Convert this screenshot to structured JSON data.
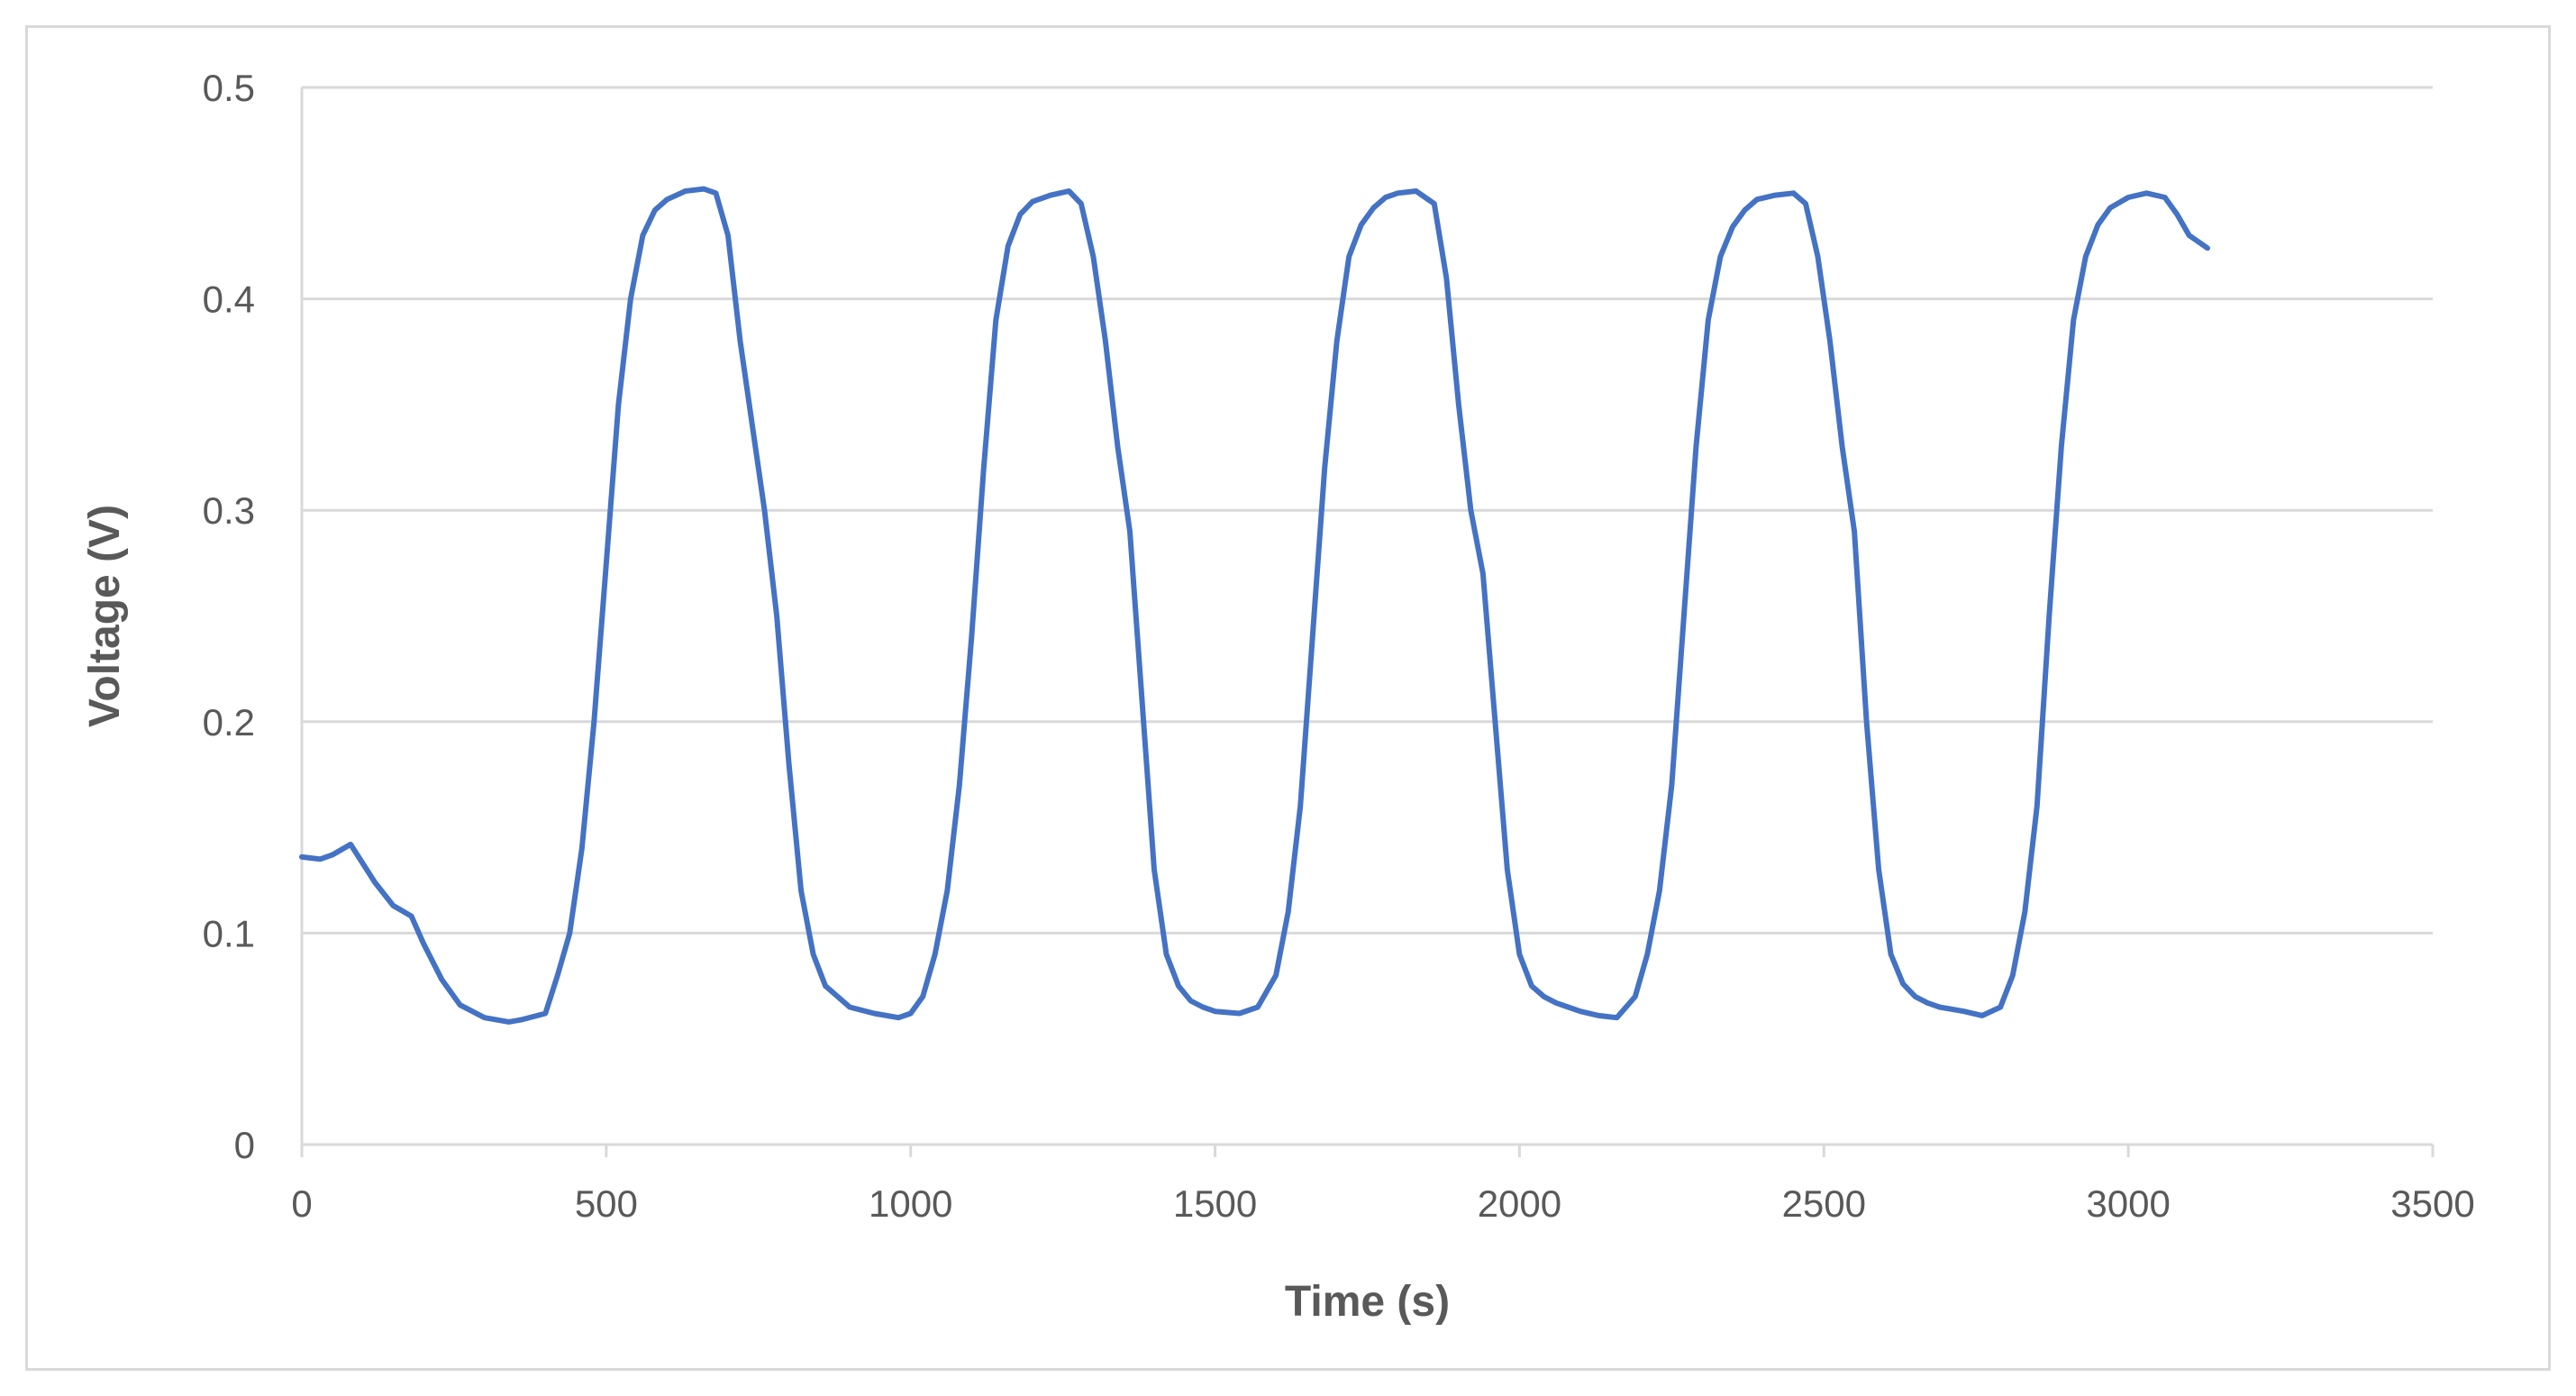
{
  "chart_data": {
    "type": "line",
    "title": "",
    "xlabel": "Time (s)",
    "ylabel": "Voltage (V)",
    "xlim": [
      0,
      3500
    ],
    "ylim": [
      0,
      0.5
    ],
    "x_ticks": [
      "0",
      "500",
      "1000",
      "1500",
      "2000",
      "2500",
      "3000",
      "3500"
    ],
    "y_ticks": [
      "0",
      "0.1",
      "0.2",
      "0.3",
      "0.4",
      "0.5"
    ],
    "grid": "horizontal",
    "legend": "none",
    "series_color": "#4472c4",
    "gridline_color": "#d9d9d9",
    "series": [
      {
        "x": [
          0,
          30,
          50,
          80,
          100,
          120,
          150,
          180,
          200,
          230,
          260,
          300,
          340,
          360,
          400,
          420,
          440,
          460,
          480,
          500,
          520,
          540,
          560,
          580,
          600,
          630,
          660,
          680,
          700,
          720,
          740,
          760,
          780,
          800,
          820,
          840,
          860,
          880,
          900,
          940,
          980,
          1000,
          1020,
          1040,
          1060,
          1080,
          1100,
          1120,
          1140,
          1160,
          1180,
          1200,
          1230,
          1260,
          1280,
          1300,
          1320,
          1340,
          1360,
          1380,
          1400,
          1420,
          1440,
          1460,
          1480,
          1500,
          1540,
          1570,
          1600,
          1620,
          1640,
          1660,
          1680,
          1700,
          1720,
          1740,
          1760,
          1780,
          1800,
          1830,
          1860,
          1880,
          1900,
          1920,
          1940,
          1960,
          1980,
          2000,
          2020,
          2040,
          2060,
          2080,
          2100,
          2130,
          2160,
          2190,
          2210,
          2230,
          2250,
          2270,
          2290,
          2310,
          2330,
          2350,
          2370,
          2390,
          2420,
          2450,
          2470,
          2490,
          2510,
          2530,
          2550,
          2570,
          2590,
          2610,
          2630,
          2650,
          2670,
          2690,
          2730,
          2760,
          2790,
          2810,
          2830,
          2850,
          2870,
          2890,
          2910,
          2930,
          2950,
          2970,
          3000,
          3030,
          3060,
          3080,
          3100,
          3130
        ],
        "y": [
          0.136,
          0.135,
          0.137,
          0.142,
          0.133,
          0.124,
          0.113,
          0.108,
          0.095,
          0.078,
          0.066,
          0.06,
          0.058,
          0.059,
          0.062,
          0.08,
          0.1,
          0.14,
          0.2,
          0.275,
          0.35,
          0.4,
          0.43,
          0.442,
          0.447,
          0.451,
          0.452,
          0.45,
          0.43,
          0.38,
          0.34,
          0.3,
          0.25,
          0.18,
          0.12,
          0.09,
          0.075,
          0.07,
          0.065,
          0.062,
          0.06,
          0.062,
          0.07,
          0.09,
          0.12,
          0.17,
          0.24,
          0.32,
          0.39,
          0.425,
          0.44,
          0.446,
          0.449,
          0.451,
          0.445,
          0.42,
          0.38,
          0.33,
          0.29,
          0.21,
          0.13,
          0.09,
          0.075,
          0.068,
          0.065,
          0.063,
          0.062,
          0.065,
          0.08,
          0.11,
          0.16,
          0.24,
          0.32,
          0.38,
          0.42,
          0.435,
          0.443,
          0.448,
          0.45,
          0.451,
          0.445,
          0.41,
          0.35,
          0.3,
          0.27,
          0.2,
          0.13,
          0.09,
          0.075,
          0.07,
          0.067,
          0.065,
          0.063,
          0.061,
          0.06,
          0.07,
          0.09,
          0.12,
          0.17,
          0.25,
          0.33,
          0.39,
          0.42,
          0.434,
          0.442,
          0.447,
          0.449,
          0.45,
          0.445,
          0.42,
          0.38,
          0.33,
          0.29,
          0.2,
          0.13,
          0.09,
          0.076,
          0.07,
          0.067,
          0.065,
          0.063,
          0.061,
          0.065,
          0.08,
          0.11,
          0.16,
          0.25,
          0.33,
          0.39,
          0.42,
          0.435,
          0.443,
          0.448,
          0.45,
          0.448,
          0.44,
          0.43,
          0.424
        ]
      }
    ]
  }
}
